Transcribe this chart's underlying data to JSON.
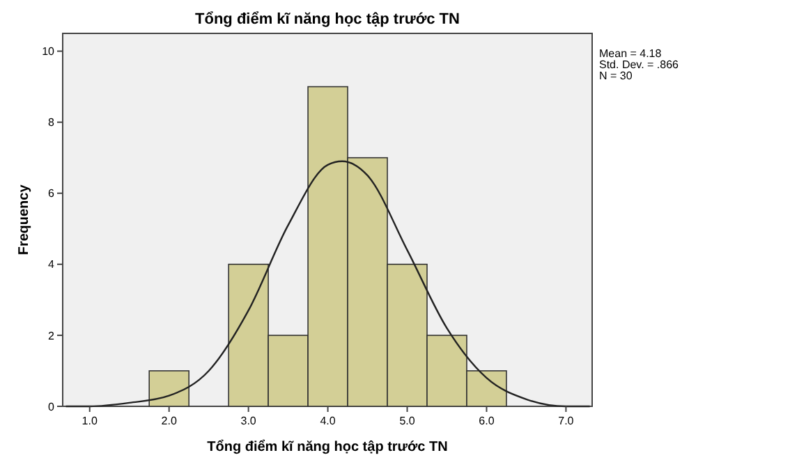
{
  "chart_data": {
    "type": "histogram",
    "title": "Tổng điểm kĩ năng học tập trước TN",
    "xlabel": "Tổng điểm kĩ năng học tập trước TN",
    "ylabel": "Frequency",
    "bins": [
      1.75,
      2.25,
      2.75,
      3.25,
      3.75,
      4.25,
      4.75,
      5.25,
      5.75,
      6.25
    ],
    "values": [
      1,
      0,
      4,
      2,
      9,
      7,
      4,
      2,
      1
    ],
    "color": "#d3cf96",
    "series": [
      {
        "type": "line",
        "color": "#222222",
        "x": [
          0.7,
          1.0,
          1.5,
          2.0,
          2.5,
          3.0,
          3.5,
          4.0,
          4.18,
          4.5,
          5.0,
          5.5,
          6.0,
          6.5,
          7.0,
          7.3
        ],
        "values": [
          0.0,
          0.0,
          0.1,
          0.3,
          1.0,
          2.7,
          5.1,
          6.8,
          6.9,
          6.5,
          4.4,
          2.2,
          0.8,
          0.2,
          0.0,
          0.0
        ]
      }
    ],
    "xlim": [
      0.66,
      7.33
    ],
    "ylim": [
      0,
      10.5
    ],
    "xticks": [
      {
        "value": 1,
        "label": "1.0"
      },
      {
        "value": 2,
        "label": "2.0"
      },
      {
        "value": 3,
        "label": "3.0"
      },
      {
        "value": 4,
        "label": "4.0"
      },
      {
        "value": 5,
        "label": "5.0"
      },
      {
        "value": 6,
        "label": "6.0"
      },
      {
        "value": 7,
        "label": "7.0"
      }
    ],
    "yticks": [
      0,
      2,
      4,
      6,
      8,
      10
    ],
    "annotations": [
      "Mean = 4.18",
      "Std. Dev. = .866",
      "N = 30"
    ]
  }
}
